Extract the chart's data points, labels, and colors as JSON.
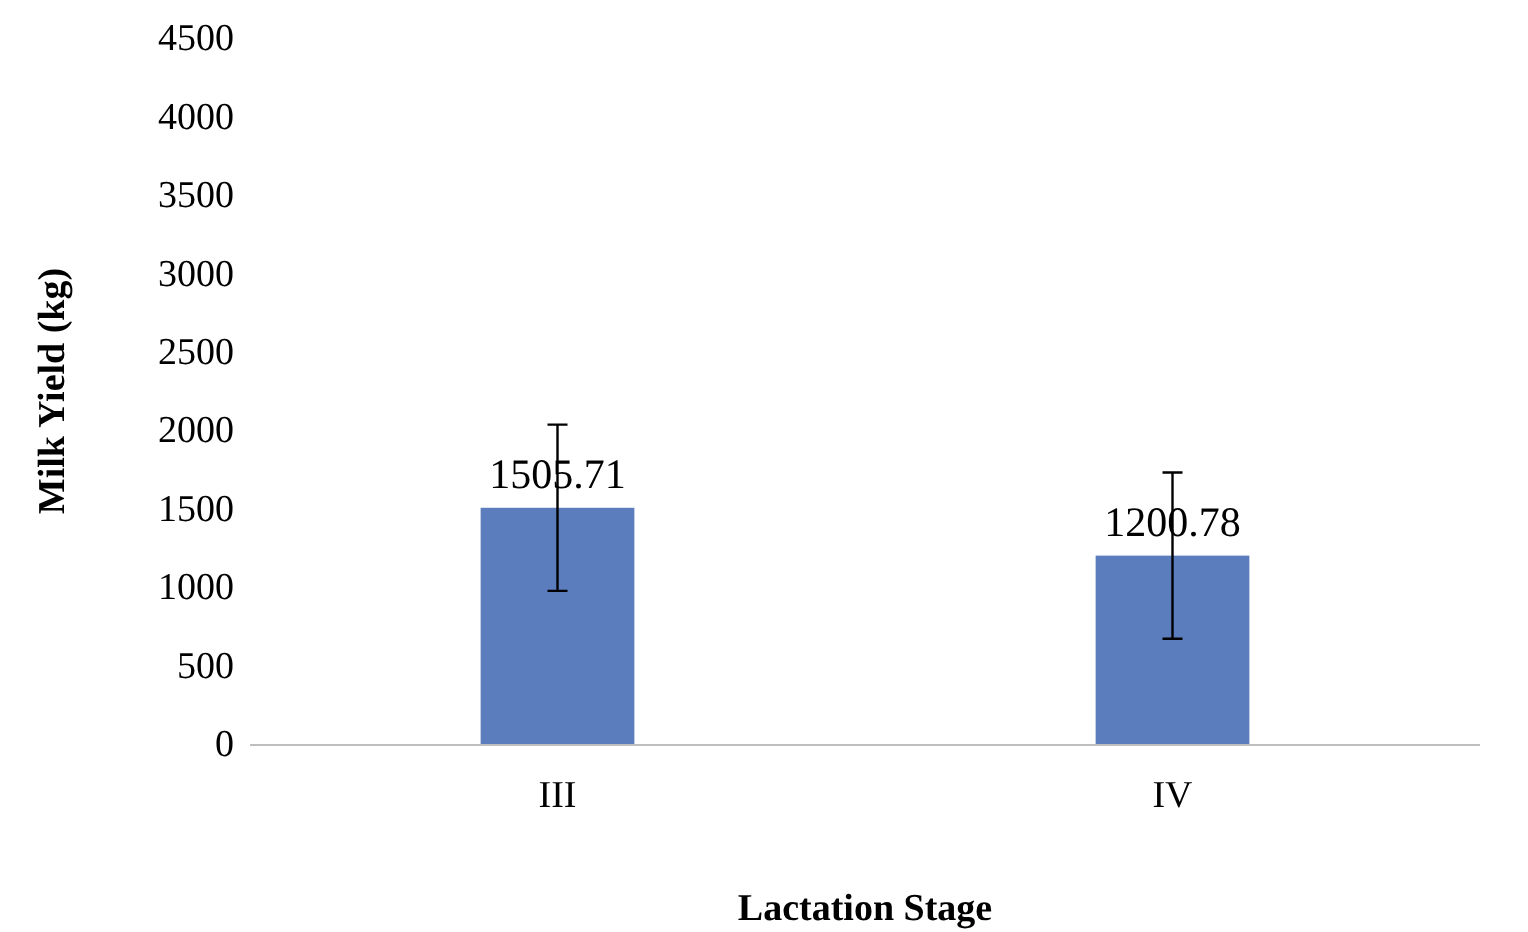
{
  "chart_data": {
    "type": "bar",
    "xlabel": "Lactation Stage",
    "ylabel": "Milk Yield (kg)",
    "categories": [
      "III",
      "IV"
    ],
    "values": [
      1505.71,
      1200.78
    ],
    "errors": [
      530,
      530
    ],
    "color": "#5b7dbd",
    "ylim": [
      0,
      4500
    ],
    "yticks": [
      0,
      500,
      1000,
      1500,
      2000,
      2500,
      3000,
      3500,
      4000,
      4500
    ],
    "data_labels": true,
    "grid": false
  }
}
